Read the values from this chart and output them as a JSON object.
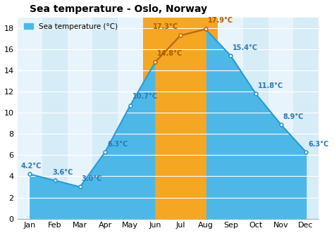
{
  "title": "Sea temperature - Oslo, Norway",
  "legend_label": "Sea temperature (°C)",
  "months": [
    "Jan",
    "Feb",
    "Mar",
    "Apr",
    "May",
    "Jun",
    "Jul",
    "Aug",
    "Sep",
    "Oct",
    "Nov",
    "Dec"
  ],
  "values": [
    4.2,
    3.6,
    3.0,
    6.3,
    10.7,
    14.8,
    17.3,
    17.9,
    15.4,
    11.8,
    8.9,
    6.3
  ],
  "ylim": [
    0,
    19
  ],
  "yticks": [
    0,
    2,
    4,
    6,
    8,
    10,
    12,
    14,
    16,
    18
  ],
  "warm_months_idx": [
    5,
    6,
    7
  ],
  "color_col_light": "#e8f4fb",
  "color_col_dark": "#d6ecf7",
  "color_cool_fill": "#4db8e8",
  "color_cool_fill_light": "#7dcef0",
  "color_warm_fill": "#f5a623",
  "color_line_cool": "#2a9ad4",
  "color_line_warm": "#cc6600",
  "label_color_cool": "#2a7ab5",
  "label_color_warm": "#b35900",
  "bg_color": "#ffffff",
  "plot_bg": "#f5f5f5",
  "title_fontsize": 10,
  "label_fontsize": 7,
  "tick_fontsize": 8
}
